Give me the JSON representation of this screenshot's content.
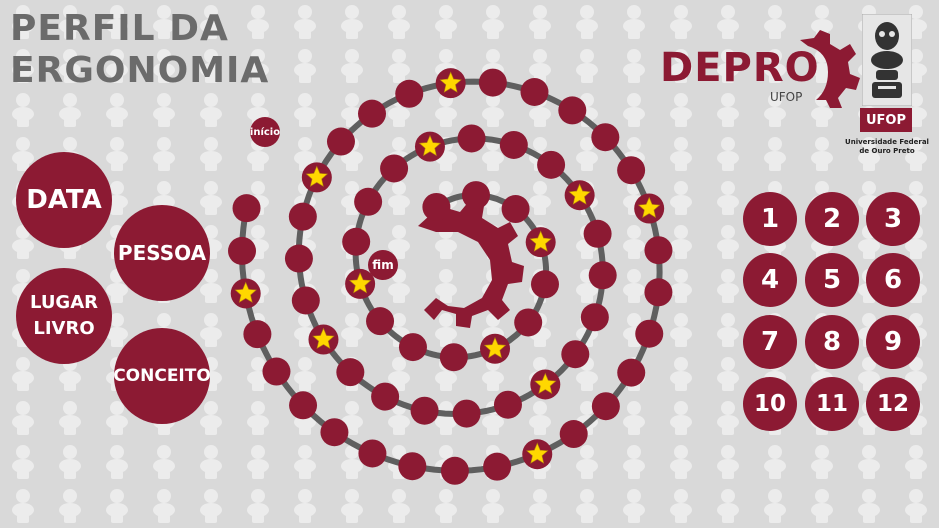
{
  "title": {
    "line1": "PERFIL DA",
    "line2": "ERGONOMIA"
  },
  "categories": {
    "data": "DATA",
    "pessoa": "PESSOA",
    "lugar_livro": "LUGAR\nLIVRO",
    "conceito": "CONCEITO"
  },
  "board": {
    "start_label": "início",
    "end_label": "fim"
  },
  "numbers": [
    "1",
    "2",
    "3",
    "4",
    "5",
    "6",
    "7",
    "8",
    "9",
    "10",
    "11",
    "12"
  ],
  "logo": {
    "depro": "DEPRO",
    "depro_sub": "UFOP",
    "ufop": "UFOP",
    "ufop_caption": "Universidade Federal\nde Ouro Preto"
  },
  "colors": {
    "accent": "#8c1a33",
    "track": "#5f5f5f",
    "star": "#ffd700",
    "title": "#6b6b6b",
    "background": "#d9d9d9"
  },
  "icons": [
    "gear-icon",
    "star-icon",
    "ufop-crest-icon"
  ]
}
